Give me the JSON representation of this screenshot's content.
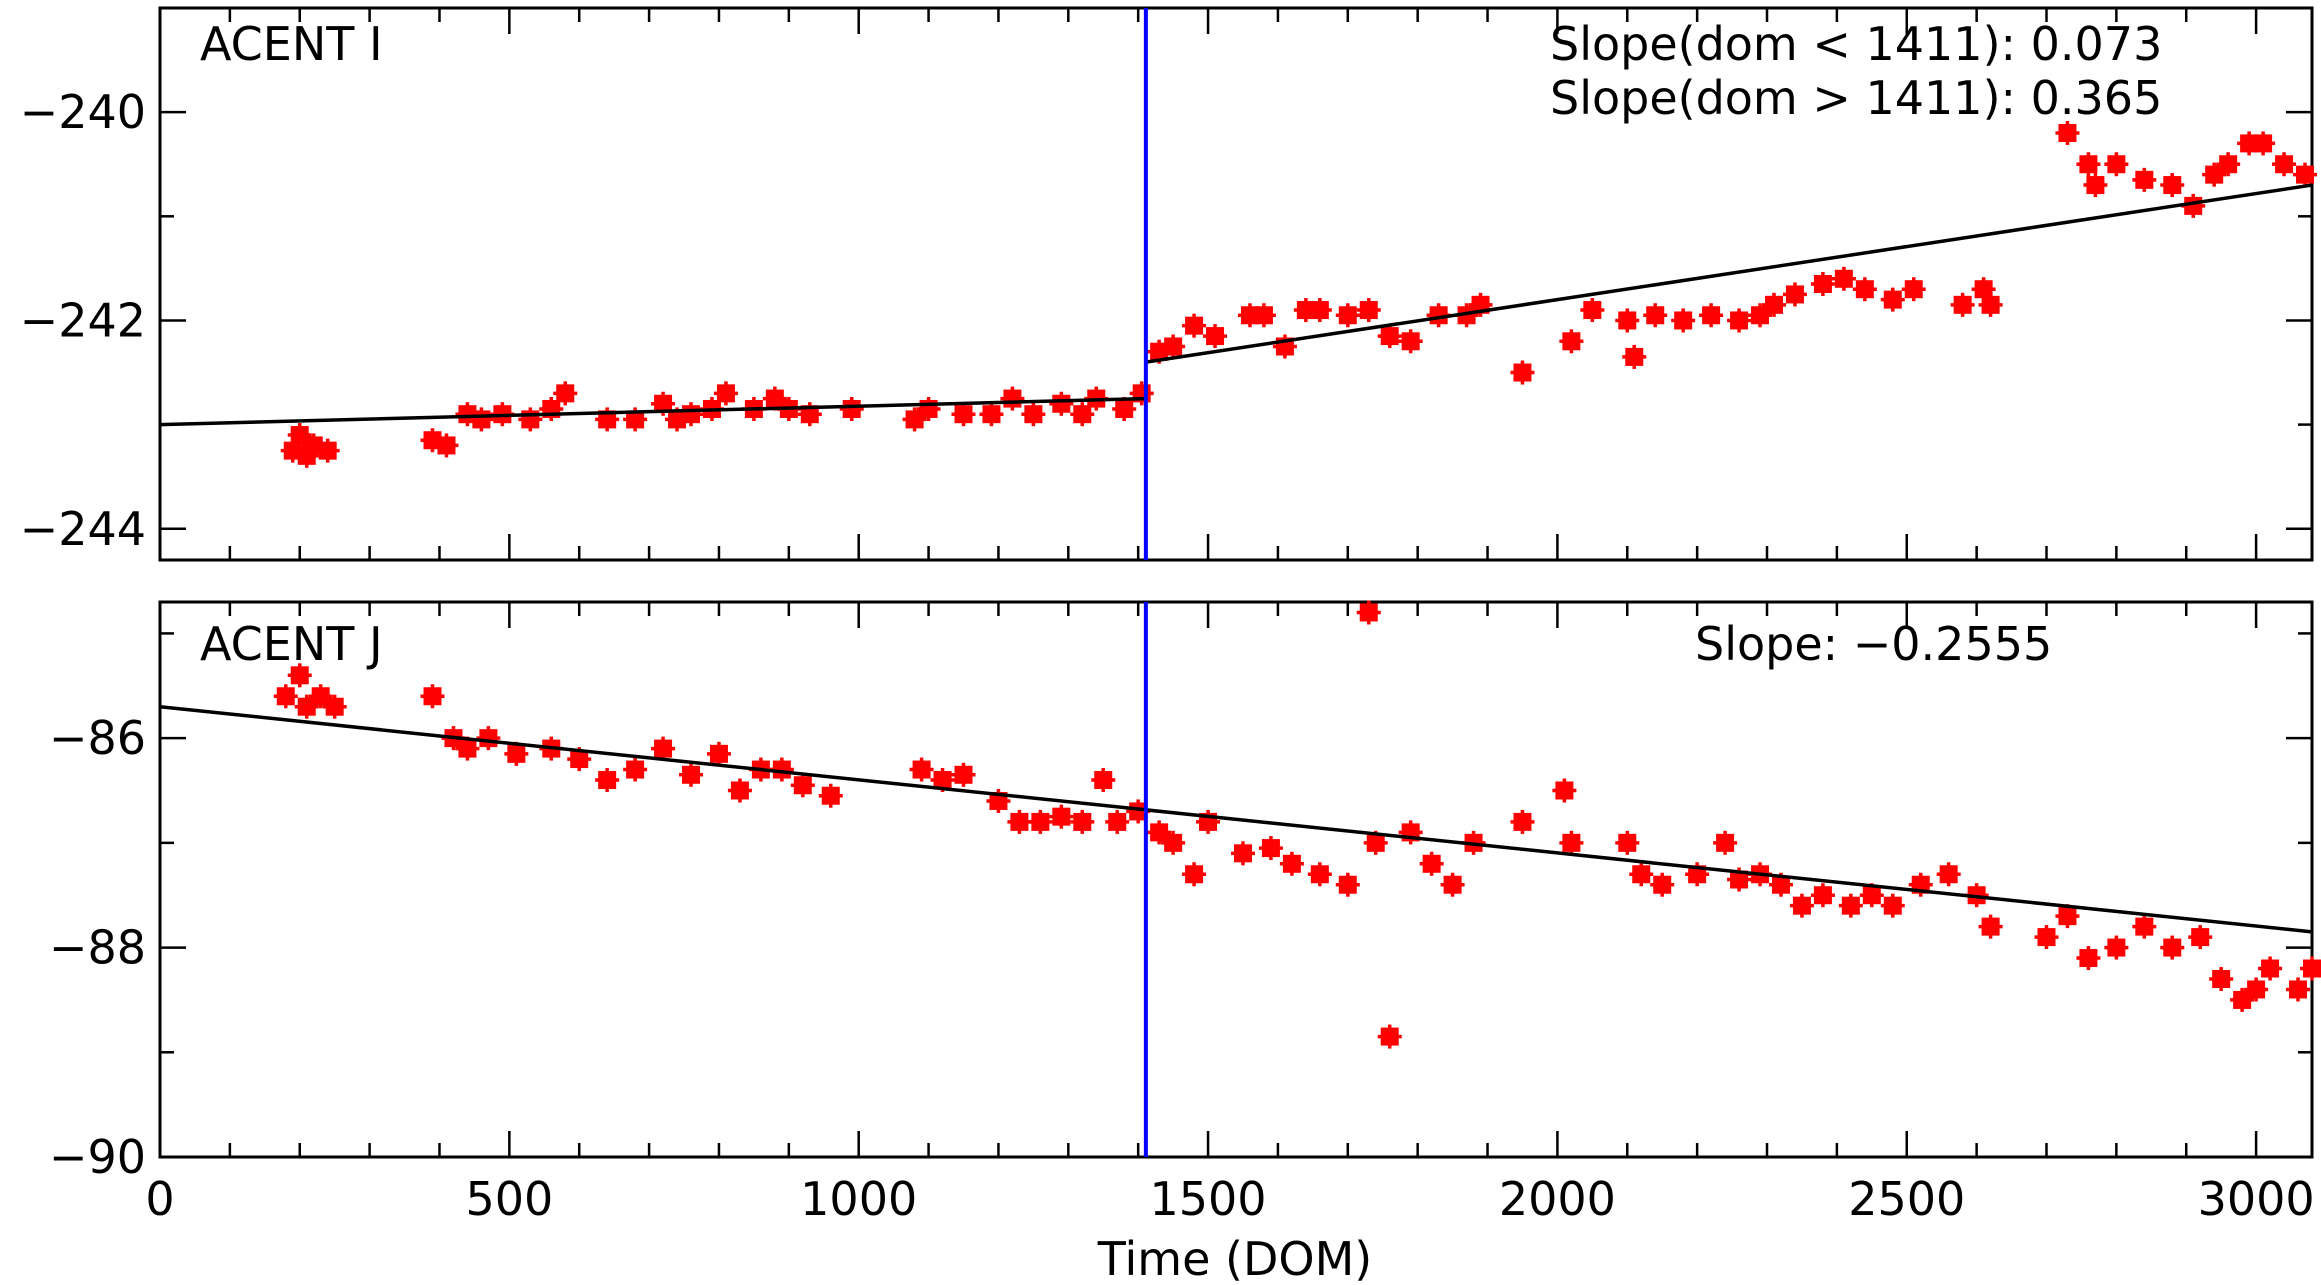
{
  "xlabel": "Time (DOM)",
  "colors": {
    "points": "#ff0000",
    "fit": "#000000",
    "break_line": "#0000ff",
    "frame": "#000000"
  },
  "chart_data": [
    {
      "type": "scatter",
      "panel_label": "ACENT I",
      "annotations": [
        "Slope(dom < 1411): 0.073",
        "Slope(dom > 1411): 0.365"
      ],
      "xlim": [
        0,
        3080
      ],
      "ylim": [
        -244.3,
        -239.0
      ],
      "x_ticks": [
        0,
        500,
        1000,
        1500,
        2000,
        2500,
        3000
      ],
      "y_ticks": [
        -244,
        -242,
        -240
      ],
      "y_tick_labels": [
        "−244",
        "−242",
        "−240"
      ],
      "break_x": 1411,
      "fits": [
        {
          "x": [
            0,
            1411
          ],
          "y": [
            -243.0,
            -242.75
          ]
        },
        {
          "x": [
            1411,
            3080
          ],
          "y": [
            -242.4,
            -240.7
          ]
        }
      ],
      "points": [
        [
          190,
          -243.25
        ],
        [
          200,
          -243.1
        ],
        [
          210,
          -243.3
        ],
        [
          220,
          -243.2
        ],
        [
          240,
          -243.25
        ],
        [
          390,
          -243.15
        ],
        [
          410,
          -243.2
        ],
        [
          440,
          -242.9
        ],
        [
          460,
          -242.95
        ],
        [
          490,
          -242.9
        ],
        [
          530,
          -242.95
        ],
        [
          560,
          -242.85
        ],
        [
          580,
          -242.7
        ],
        [
          640,
          -242.95
        ],
        [
          680,
          -242.95
        ],
        [
          720,
          -242.8
        ],
        [
          740,
          -242.95
        ],
        [
          760,
          -242.9
        ],
        [
          790,
          -242.85
        ],
        [
          810,
          -242.7
        ],
        [
          850,
          -242.85
        ],
        [
          880,
          -242.75
        ],
        [
          900,
          -242.85
        ],
        [
          930,
          -242.9
        ],
        [
          990,
          -242.85
        ],
        [
          1080,
          -242.95
        ],
        [
          1100,
          -242.85
        ],
        [
          1150,
          -242.9
        ],
        [
          1190,
          -242.9
        ],
        [
          1220,
          -242.75
        ],
        [
          1250,
          -242.9
        ],
        [
          1290,
          -242.8
        ],
        [
          1320,
          -242.9
        ],
        [
          1340,
          -242.75
        ],
        [
          1380,
          -242.85
        ],
        [
          1405,
          -242.7
        ],
        [
          1430,
          -242.3
        ],
        [
          1450,
          -242.25
        ],
        [
          1480,
          -242.05
        ],
        [
          1510,
          -242.15
        ],
        [
          1560,
          -241.95
        ],
        [
          1580,
          -241.95
        ],
        [
          1610,
          -242.25
        ],
        [
          1640,
          -241.9
        ],
        [
          1660,
          -241.9
        ],
        [
          1700,
          -241.95
        ],
        [
          1730,
          -241.9
        ],
        [
          1760,
          -242.15
        ],
        [
          1790,
          -242.2
        ],
        [
          1830,
          -241.95
        ],
        [
          1870,
          -241.95
        ],
        [
          1890,
          -241.85
        ],
        [
          1950,
          -242.5
        ],
        [
          2020,
          -242.2
        ],
        [
          2050,
          -241.9
        ],
        [
          2100,
          -242.0
        ],
        [
          2110,
          -242.35
        ],
        [
          2140,
          -241.95
        ],
        [
          2180,
          -242.0
        ],
        [
          2220,
          -241.95
        ],
        [
          2260,
          -242.0
        ],
        [
          2290,
          -241.95
        ],
        [
          2310,
          -241.85
        ],
        [
          2340,
          -241.75
        ],
        [
          2380,
          -241.65
        ],
        [
          2410,
          -241.6
        ],
        [
          2440,
          -241.7
        ],
        [
          2480,
          -241.8
        ],
        [
          2510,
          -241.7
        ],
        [
          2580,
          -241.85
        ],
        [
          2610,
          -241.7
        ],
        [
          2620,
          -241.85
        ],
        [
          2730,
          -240.2
        ],
        [
          2760,
          -240.5
        ],
        [
          2770,
          -240.7
        ],
        [
          2800,
          -240.5
        ],
        [
          2840,
          -240.65
        ],
        [
          2880,
          -240.7
        ],
        [
          2910,
          -240.9
        ],
        [
          2940,
          -240.6
        ],
        [
          2960,
          -240.5
        ],
        [
          2990,
          -240.3
        ],
        [
          3010,
          -240.3
        ],
        [
          3040,
          -240.5
        ],
        [
          3070,
          -240.6
        ]
      ]
    },
    {
      "type": "scatter",
      "panel_label": "ACENT J",
      "annotations": [
        "Slope: −0.2555"
      ],
      "xlim": [
        0,
        3080
      ],
      "ylim": [
        -90.0,
        -84.7
      ],
      "x_ticks": [
        0,
        500,
        1000,
        1500,
        2000,
        2500,
        3000
      ],
      "x_tick_labels": [
        "0",
        "500",
        "1000",
        "1500",
        "2000",
        "2500",
        "3000"
      ],
      "y_ticks": [
        -90,
        -88,
        -86
      ],
      "y_tick_labels": [
        "−90",
        "−88",
        "−86"
      ],
      "break_x": 1411,
      "fits": [
        {
          "x": [
            0,
            3080
          ],
          "y": [
            -85.7,
            -87.85
          ]
        }
      ],
      "points": [
        [
          180,
          -85.6
        ],
        [
          200,
          -85.4
        ],
        [
          210,
          -85.7
        ],
        [
          230,
          -85.6
        ],
        [
          250,
          -85.7
        ],
        [
          390,
          -85.6
        ],
        [
          420,
          -86.0
        ],
        [
          440,
          -86.1
        ],
        [
          470,
          -86.0
        ],
        [
          510,
          -86.15
        ],
        [
          560,
          -86.1
        ],
        [
          600,
          -86.2
        ],
        [
          640,
          -86.4
        ],
        [
          680,
          -86.3
        ],
        [
          720,
          -86.1
        ],
        [
          760,
          -86.35
        ],
        [
          800,
          -86.15
        ],
        [
          830,
          -86.5
        ],
        [
          860,
          -86.3
        ],
        [
          890,
          -86.3
        ],
        [
          920,
          -86.45
        ],
        [
          960,
          -86.55
        ],
        [
          1090,
          -86.3
        ],
        [
          1120,
          -86.4
        ],
        [
          1150,
          -86.35
        ],
        [
          1200,
          -86.6
        ],
        [
          1230,
          -86.8
        ],
        [
          1260,
          -86.8
        ],
        [
          1290,
          -86.75
        ],
        [
          1320,
          -86.8
        ],
        [
          1350,
          -86.4
        ],
        [
          1370,
          -86.8
        ],
        [
          1400,
          -86.7
        ],
        [
          1430,
          -86.9
        ],
        [
          1450,
          -87.0
        ],
        [
          1480,
          -87.3
        ],
        [
          1500,
          -86.8
        ],
        [
          1550,
          -87.1
        ],
        [
          1590,
          -87.05
        ],
        [
          1620,
          -87.2
        ],
        [
          1660,
          -87.3
        ],
        [
          1700,
          -87.4
        ],
        [
          1730,
          -84.8
        ],
        [
          1740,
          -87.0
        ],
        [
          1760,
          -88.85
        ],
        [
          1790,
          -86.9
        ],
        [
          1820,
          -87.2
        ],
        [
          1850,
          -87.4
        ],
        [
          1880,
          -87.0
        ],
        [
          1950,
          -86.8
        ],
        [
          2010,
          -86.5
        ],
        [
          2020,
          -87.0
        ],
        [
          2100,
          -87.0
        ],
        [
          2120,
          -87.3
        ],
        [
          2150,
          -87.4
        ],
        [
          2200,
          -87.3
        ],
        [
          2240,
          -87.0
        ],
        [
          2260,
          -87.35
        ],
        [
          2290,
          -87.3
        ],
        [
          2320,
          -87.4
        ],
        [
          2350,
          -87.6
        ],
        [
          2380,
          -87.5
        ],
        [
          2420,
          -87.6
        ],
        [
          2450,
          -87.5
        ],
        [
          2480,
          -87.6
        ],
        [
          2520,
          -87.4
        ],
        [
          2560,
          -87.3
        ],
        [
          2600,
          -87.5
        ],
        [
          2620,
          -87.8
        ],
        [
          2700,
          -87.9
        ],
        [
          2730,
          -87.7
        ],
        [
          2760,
          -88.1
        ],
        [
          2800,
          -88.0
        ],
        [
          2840,
          -87.8
        ],
        [
          2880,
          -88.0
        ],
        [
          2920,
          -87.9
        ],
        [
          2950,
          -88.3
        ],
        [
          2980,
          -88.5
        ],
        [
          3000,
          -88.4
        ],
        [
          3020,
          -88.2
        ],
        [
          3060,
          -88.4
        ],
        [
          3080,
          -88.2
        ]
      ]
    }
  ]
}
